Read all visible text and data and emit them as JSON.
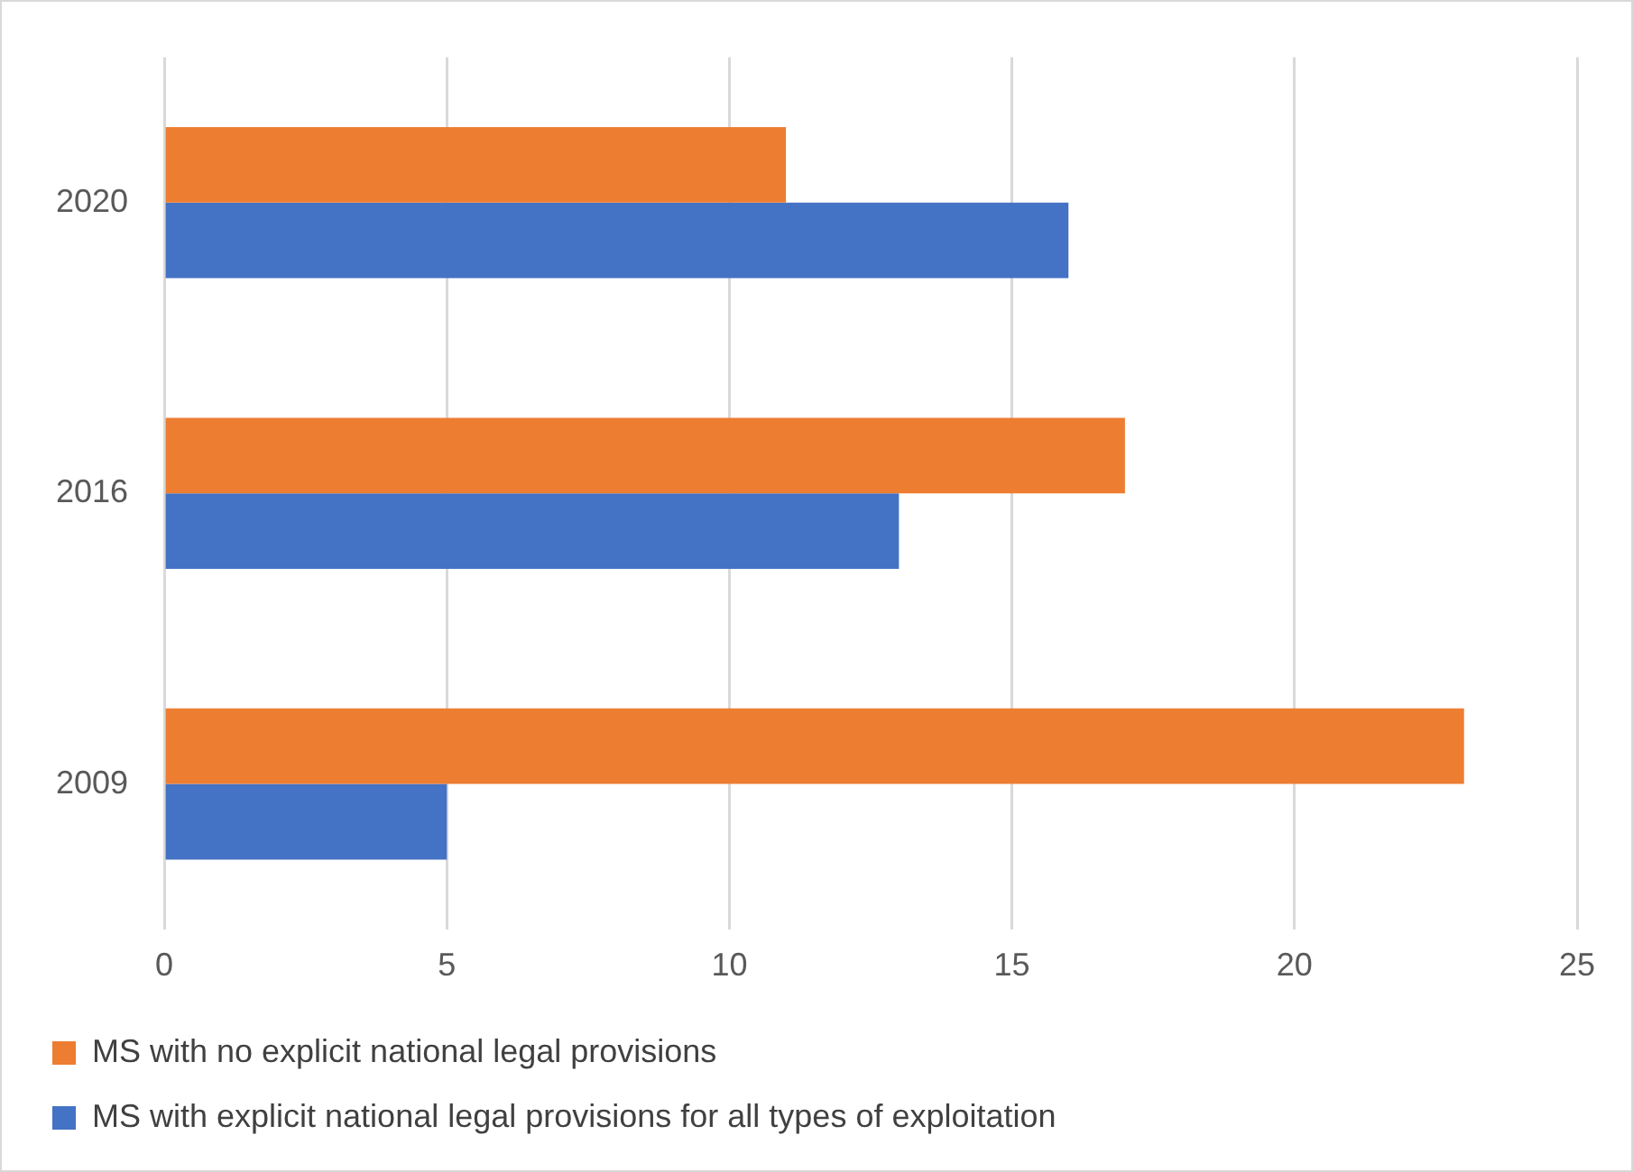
{
  "chart_data": {
    "type": "bar",
    "orientation": "horizontal",
    "categories": [
      "2020",
      "2016",
      "2009"
    ],
    "series": [
      {
        "name": "MS with no explicit national legal provisions",
        "color": "#ed7d31",
        "values": [
          11,
          17,
          23
        ]
      },
      {
        "name": "MS with explicit national legal provisions for all types of exploitation",
        "color": "#4472c4",
        "values": [
          16,
          13,
          5
        ]
      }
    ],
    "xlim": [
      0,
      25
    ],
    "xticks": [
      0,
      5,
      10,
      15,
      20,
      25
    ],
    "grid": "x",
    "legend": "bottom"
  }
}
